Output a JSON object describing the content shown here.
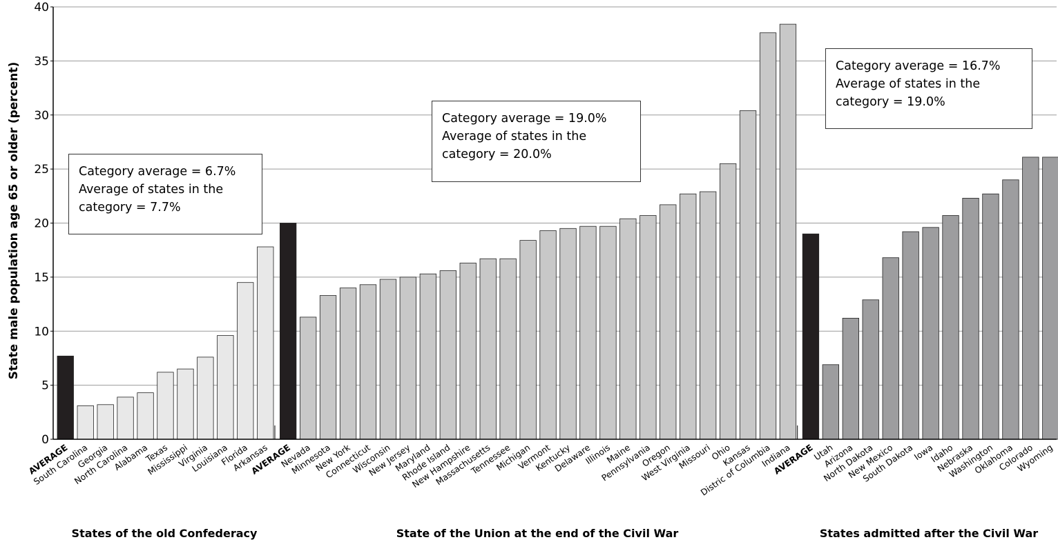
{
  "chart_data": {
    "type": "bar",
    "ylabel": "State male population age 65 or older (percent)",
    "ylim": [
      0,
      40
    ],
    "yticks": [
      0,
      5,
      10,
      15,
      20,
      25,
      30,
      35,
      40
    ],
    "grid": true,
    "groups": [
      {
        "title": "States of the old Confederacy",
        "color": "#e8e8e8",
        "average_color": "#231f20",
        "annotation": [
          "Category average = 6.7%",
          "Average of states in the",
          "category = 7.7%"
        ],
        "categories": [
          "AVERAGE",
          "South Carolina",
          "Georgia",
          "North Carolina",
          "Alabama",
          "Texas",
          "Mississippi",
          "Virginia",
          "Louisiana",
          "Florida",
          "Arkansas"
        ],
        "values": [
          7.7,
          3.1,
          3.2,
          3.9,
          4.3,
          6.2,
          6.5,
          7.6,
          9.6,
          14.5,
          17.8
        ]
      },
      {
        "title": "State of the Union at the end of the Civil War",
        "color": "#c8c8c8",
        "average_color": "#231f20",
        "annotation": [
          "Category average  = 19.0%",
          "Average of states in the",
          "category = 20.0%"
        ],
        "categories": [
          "AVERAGE",
          "Nevada",
          "Minnesota",
          "New York",
          "Connecticut",
          "Wisconsin",
          "New Jersey",
          "Maryland",
          "Rhode Island",
          "New Hampshire",
          "Massachusetts",
          "Tennessee",
          "Michigan",
          "Vermont",
          "Kentucky",
          "Delaware",
          "Illinois",
          "Maine",
          "Pennsylvania",
          "Oregon",
          "West Virginia",
          "Missouri",
          "Ohio",
          "Kansas",
          "Distric of Columbia",
          "Indiana"
        ],
        "values": [
          20.0,
          11.3,
          13.3,
          14.0,
          14.3,
          14.8,
          15.0,
          15.3,
          15.6,
          16.3,
          16.7,
          16.7,
          18.4,
          19.3,
          19.5,
          19.7,
          19.7,
          20.4,
          20.7,
          21.7,
          22.7,
          22.9,
          25.5,
          30.4,
          37.6,
          38.4
        ]
      },
      {
        "title": "States admitted after the Civil War",
        "color": "#9d9d9f",
        "average_color": "#231f20",
        "annotation": [
          "Category average = 16.7%",
          "Average of states in the",
          "category  = 19.0%"
        ],
        "categories": [
          "AVERAGE",
          "Utah",
          "Arizona",
          "North Dakota",
          "New Mexico",
          "South Dakota",
          "Iowa",
          "Idaho",
          "Nebraska",
          "Washington",
          "Oklahoma",
          "Colorado",
          "Wyoming"
        ],
        "values": [
          19.0,
          6.9,
          11.2,
          12.9,
          16.8,
          19.2,
          19.6,
          20.7,
          22.3,
          22.7,
          24.0,
          26.1,
          26.1
        ]
      }
    ]
  }
}
